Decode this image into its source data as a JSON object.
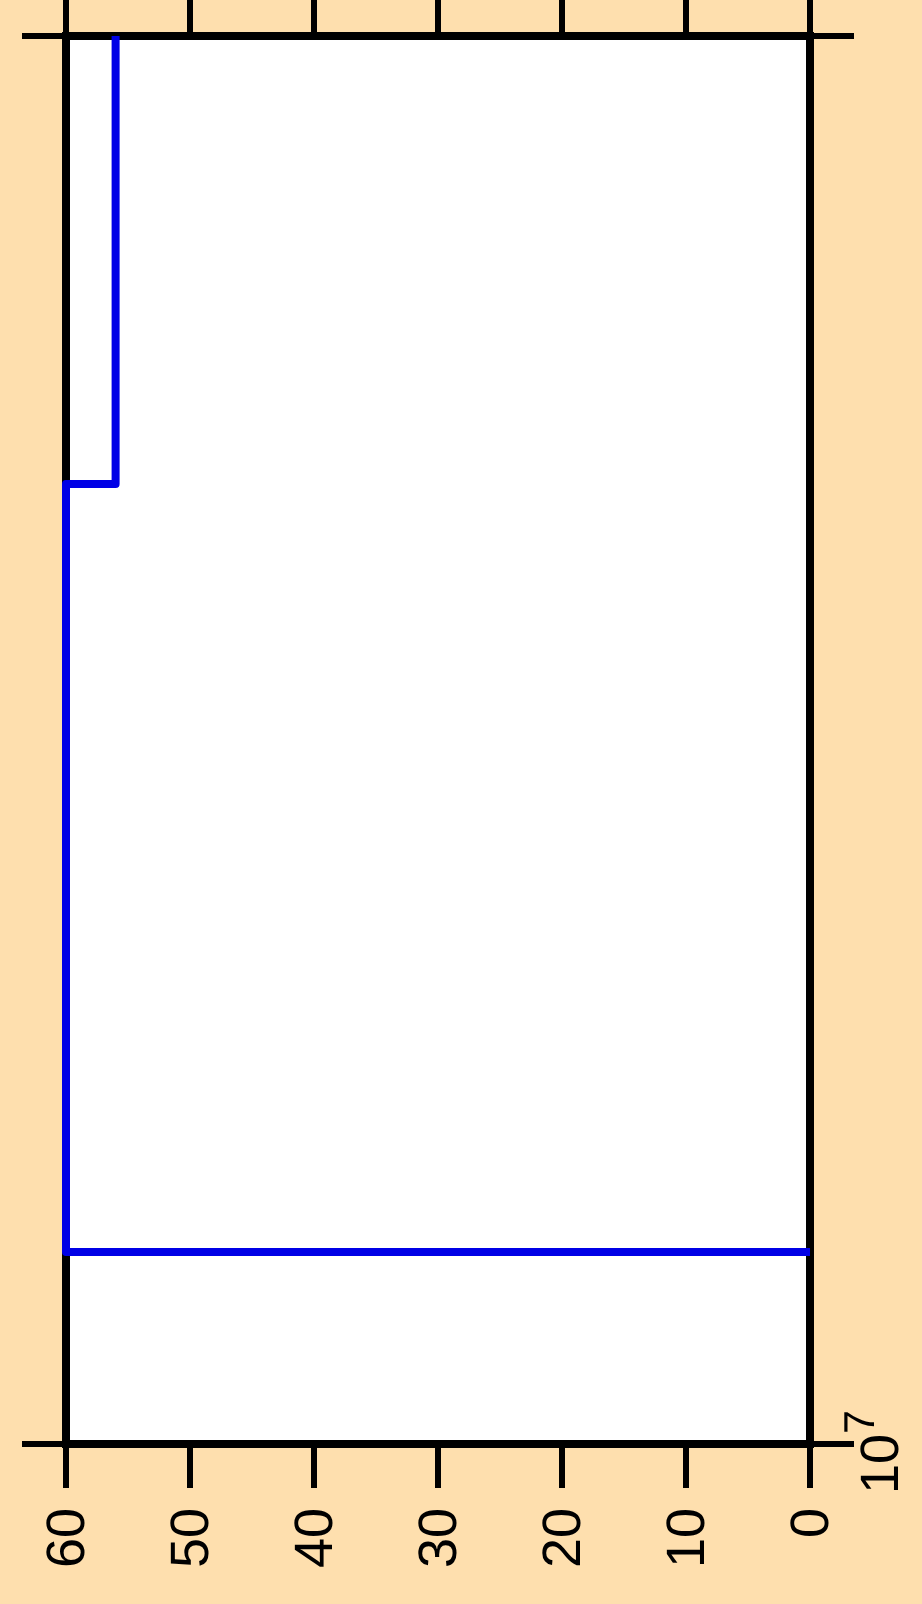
{
  "chart_data": {
    "type": "step",
    "orientation": "horizontal",
    "categories": [
      null,
      null,
      null,
      null,
      null,
      null,
      null,
      null,
      null,
      null,
      null,
      null,
      null,
      null,
      null,
      null,
      null,
      null,
      null,
      null,
      null,
      null,
      null
    ],
    "series": [
      {
        "color": "#0000e6",
        "values": [
          56,
          56,
          56,
          56,
          56,
          56,
          56,
          60,
          60,
          60,
          60,
          60,
          60,
          60,
          60,
          60,
          60,
          60,
          60,
          0,
          null,
          null,
          null
        ]
      }
    ],
    "xlim": [
      60,
      0
    ],
    "xticks": [
      0,
      10,
      20,
      30,
      40,
      50,
      60
    ],
    "annotations": [
      "10$^{7}$"
    ]
  }
}
